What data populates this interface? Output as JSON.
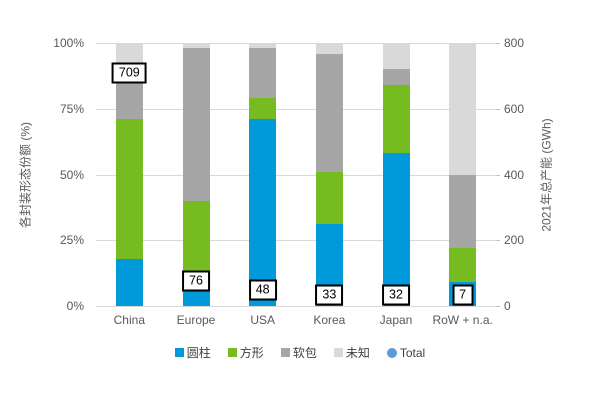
{
  "chart_data": {
    "type": "bar",
    "subtype": "stacked-percent-with-secondary-total",
    "title": "",
    "categories": [
      "China",
      "Europe",
      "USA",
      "Korea",
      "Japan",
      "RoW + n.a."
    ],
    "series": [
      {
        "name": "圆柱",
        "color": "#0099DA",
        "values": [
          18,
          8,
          71,
          31,
          58,
          9
        ]
      },
      {
        "name": "方形",
        "color": "#76BC21",
        "values": [
          53,
          32,
          8,
          20,
          26,
          13
        ]
      },
      {
        "name": "软包",
        "color": "#A6A6A6",
        "values": [
          19,
          58,
          19,
          45,
          6,
          28
        ]
      },
      {
        "name": "未知",
        "color": "#D9D9D9",
        "values": [
          10,
          2,
          2,
          4,
          10,
          50
        ]
      }
    ],
    "total_series": {
      "name": "Total",
      "color": "#5B9BD5",
      "axis": "right",
      "values": [
        709,
        76,
        48,
        33,
        32,
        7
      ],
      "labels_boxed": true
    },
    "left_axis": {
      "title": "各封装形态份额 (%)",
      "ticks": [
        "0%",
        "25%",
        "50%",
        "75%",
        "100%"
      ],
      "range": [
        0,
        100
      ]
    },
    "right_axis": {
      "title": "2021年总产能 (GWh)",
      "ticks": [
        "0",
        "200",
        "400",
        "600",
        "800"
      ],
      "range": [
        0,
        800
      ]
    },
    "legend": [
      "圆柱",
      "方形",
      "软包",
      "未知",
      "Total"
    ],
    "grid": true,
    "legend_position": "bottom",
    "colors": {
      "gridline": "#D9D9D9",
      "tick_text": "#595959",
      "label_box_border": "#000000",
      "label_box_fill": "#FFFFFF"
    }
  }
}
